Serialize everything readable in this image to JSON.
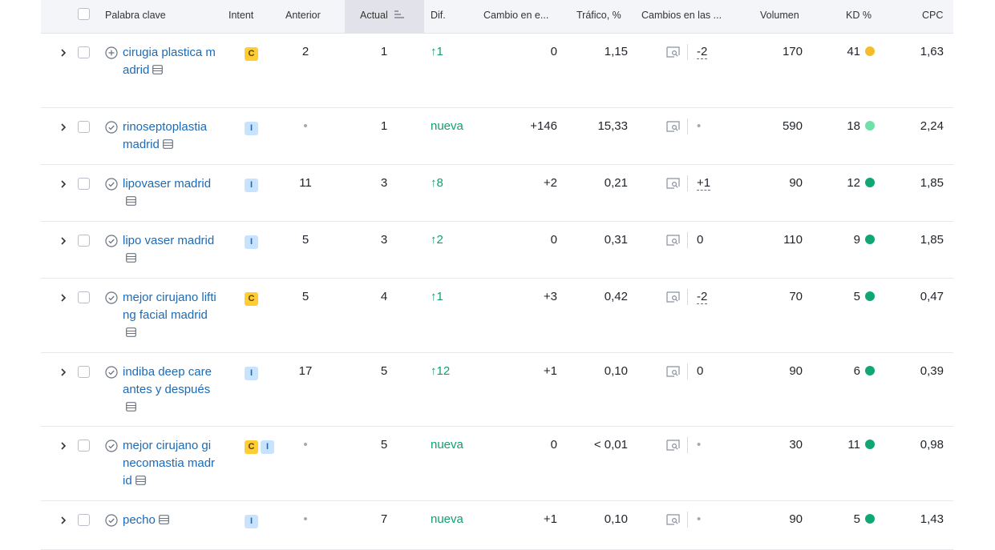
{
  "headers": {
    "keyword": "Palabra clave",
    "intent": "Intent",
    "previous": "Anterior",
    "current": "Actual",
    "diff": "Dif.",
    "change": "Cambio en e...",
    "traffic": "Tráfico, %",
    "serp_changes": "Cambios en las ...",
    "volume": "Volumen",
    "kd": "KD %",
    "cpc": "CPC"
  },
  "rows": [
    {
      "keyword": "cirugia plastica madrid",
      "status": "add",
      "intents": [
        "C"
      ],
      "previous": "2",
      "current": "1",
      "diff": "↑1",
      "change": "0",
      "traffic": "1,15",
      "serp": "-2",
      "volume": "170",
      "kd": "41",
      "kd_color": "#f6bd2b",
      "cpc": "1,63"
    },
    {
      "keyword": "rinoseptoplastia madrid",
      "status": "check",
      "intents": [
        "I"
      ],
      "previous": "•",
      "current": "1",
      "diff": "nueva",
      "change": "+146",
      "traffic": "15,33",
      "serp": "•",
      "volume": "590",
      "kd": "18",
      "kd_color": "#6fe0a8",
      "cpc": "2,24"
    },
    {
      "keyword": "lipovaser madrid",
      "status": "check",
      "intents": [
        "I"
      ],
      "previous": "11",
      "current": "3",
      "diff": "↑8",
      "change": "+2",
      "traffic": "0,21",
      "serp": "+1",
      "volume": "90",
      "kd": "12",
      "kd_color": "#10a777",
      "cpc": "1,85"
    },
    {
      "keyword": "lipo vaser madrid",
      "status": "check",
      "intents": [
        "I"
      ],
      "previous": "5",
      "current": "3",
      "diff": "↑2",
      "change": "0",
      "traffic": "0,31",
      "serp": "0",
      "volume": "110",
      "kd": "9",
      "kd_color": "#10a777",
      "cpc": "1,85"
    },
    {
      "keyword": "mejor cirujano lifting facial madrid",
      "status": "check",
      "intents": [
        "C"
      ],
      "previous": "5",
      "current": "4",
      "diff": "↑1",
      "change": "+3",
      "traffic": "0,42",
      "serp": "-2",
      "volume": "70",
      "kd": "5",
      "kd_color": "#10a777",
      "cpc": "0,47"
    },
    {
      "keyword": "indiba deep care antes y después",
      "status": "check",
      "intents": [
        "I"
      ],
      "previous": "17",
      "current": "5",
      "diff": "↑12",
      "change": "+1",
      "traffic": "0,10",
      "serp": "0",
      "volume": "90",
      "kd": "6",
      "kd_color": "#10a777",
      "cpc": "0,39"
    },
    {
      "keyword": "mejor cirujano ginecomastia madrid",
      "status": "check",
      "intents": [
        "C",
        "I"
      ],
      "previous": "•",
      "current": "5",
      "diff": "nueva",
      "change": "0",
      "traffic": "< 0,01",
      "serp": "•",
      "volume": "30",
      "kd": "11",
      "kd_color": "#10a777",
      "cpc": "0,98"
    },
    {
      "keyword": "pecho",
      "status": "check",
      "intents": [
        "I"
      ],
      "previous": "•",
      "current": "7",
      "diff": "nueva",
      "change": "+1",
      "traffic": "0,10",
      "serp": "•",
      "volume": "90",
      "kd": "5",
      "kd_color": "#10a777",
      "cpc": "1,43"
    }
  ]
}
